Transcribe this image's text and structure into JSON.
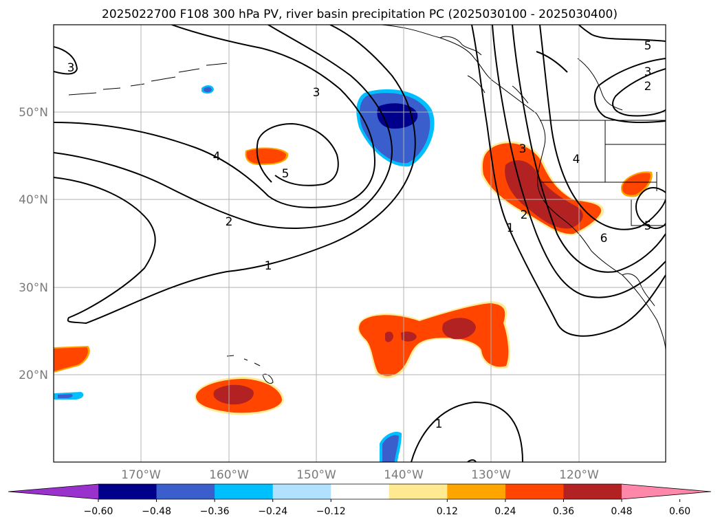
{
  "title": "2025022700 F108 300 hPa PV, river basin precipitation PC (2025030100 - 2025030400)",
  "lat_labels": [
    "50°N",
    "40°N",
    "30°N",
    "20°N"
  ],
  "lon_labels": [
    "170°W",
    "160°W",
    "150°W",
    "140°W",
    "130°W",
    "120°W"
  ],
  "colorbar": {
    "colors": [
      "#9932cc",
      "#00008b",
      "#3a5fcd",
      "#00bfff",
      "#b0e2ff",
      "#ffffff",
      "#ffe991",
      "#ffa500",
      "#ff4500",
      "#b22222",
      "#ff88aa"
    ],
    "labels": [
      "−0.60",
      "−0.48",
      "−0.36",
      "−0.24",
      "−0.12",
      "0.12",
      "0.24",
      "0.36",
      "0.48",
      "0.60"
    ]
  },
  "contour_labels": [
    "3",
    "3",
    "4",
    "5",
    "2",
    "1",
    "3",
    "4",
    "2",
    "1",
    "6",
    "5",
    "5",
    "3",
    "2",
    "1"
  ],
  "colors": {
    "contour": "#000000",
    "grid": "#b0b0b0",
    "axis_label": "#7a7a7a"
  }
}
